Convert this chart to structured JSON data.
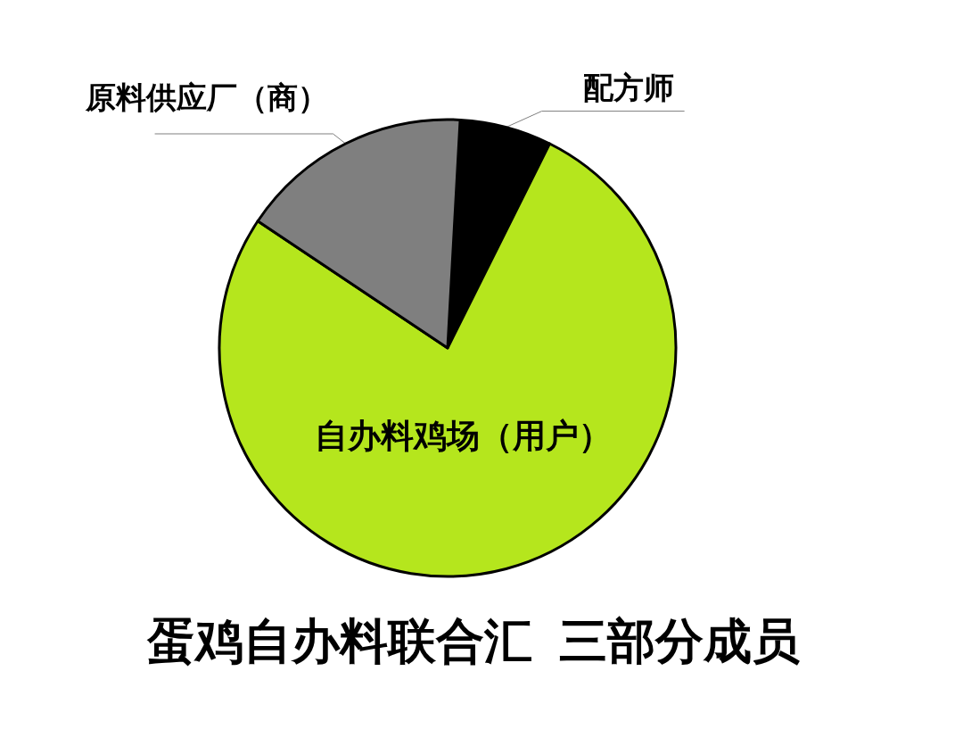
{
  "chart_data": {
    "type": "pie",
    "title": "蛋鸡自办料联合汇  三部分成员",
    "categories": [
      "配方师",
      "自办料鸡场（用户）",
      "原料供应厂（商）"
    ],
    "values": [
      6.5,
      77,
      16.5
    ],
    "colors": [
      "#000000",
      "#b5e61d",
      "#7f7f7f"
    ],
    "legend": false
  }
}
